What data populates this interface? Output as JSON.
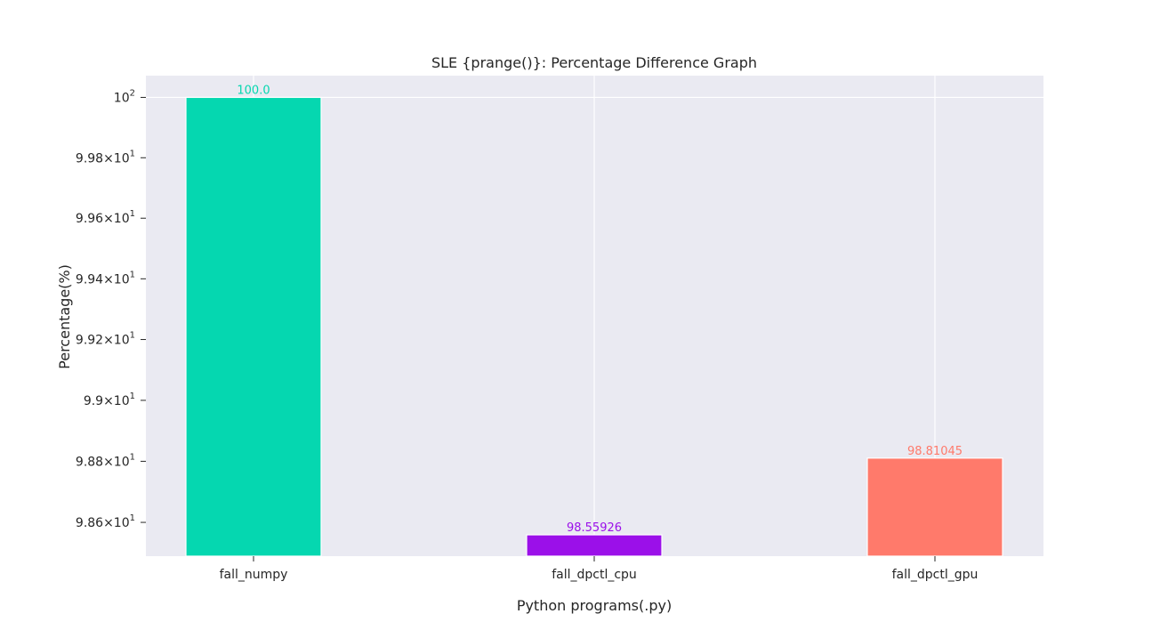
{
  "chart_data": {
    "type": "bar",
    "title": "SLE {prange()}: Percentage Difference Graph",
    "xlabel": "Python programs(.py)",
    "ylabel": "Percentage(%)",
    "yscale": "log",
    "ylim": [
      98.4896,
      100.0722
    ],
    "grid": true,
    "categories": [
      "fall_numpy",
      "fall_dpctl_cpu",
      "fall_dpctl_gpu"
    ],
    "values": [
      100.0,
      98.55926,
      98.81045
    ],
    "value_labels": [
      "100.0",
      "98.55926",
      "98.81045"
    ],
    "colors": [
      "#05d7b0",
      "#9b10e9",
      "#ff7a6b"
    ],
    "plot_background": "#eaeaf2",
    "yticks": [
      {
        "value": 98.6,
        "mantissa": "9.86",
        "exponent": "1"
      },
      {
        "value": 98.8,
        "mantissa": "9.88",
        "exponent": "1"
      },
      {
        "value": 99.0,
        "mantissa": "9.9",
        "exponent": "1"
      },
      {
        "value": 99.2,
        "mantissa": "9.92",
        "exponent": "1"
      },
      {
        "value": 99.4,
        "mantissa": "9.94",
        "exponent": "1"
      },
      {
        "value": 99.6,
        "mantissa": "9.96",
        "exponent": "1"
      },
      {
        "value": 99.8,
        "mantissa": "9.98",
        "exponent": "1"
      },
      {
        "value": 100.0,
        "mantissa": "10",
        "exponent": "2"
      }
    ]
  }
}
